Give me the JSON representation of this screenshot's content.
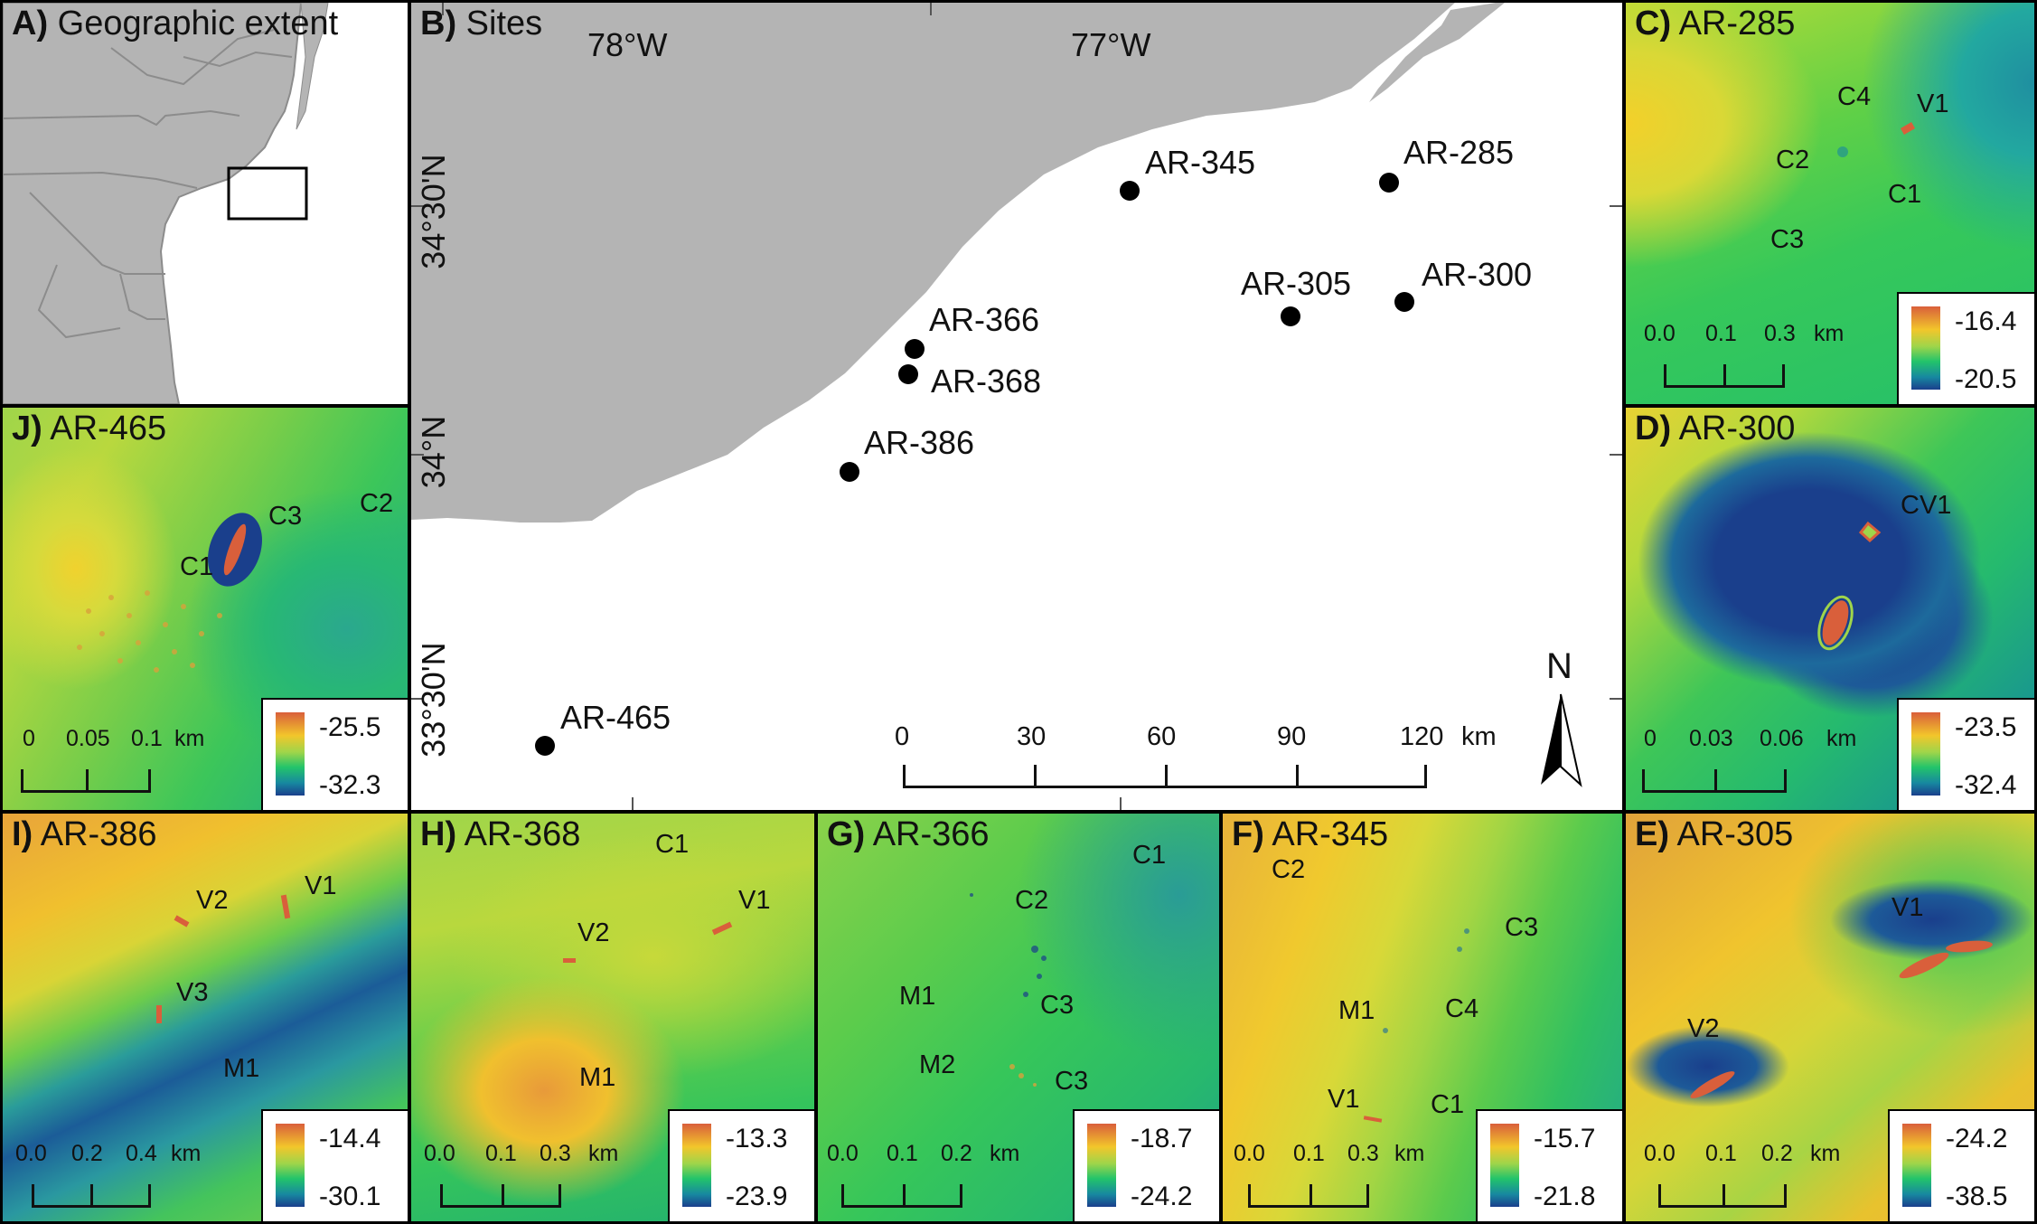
{
  "panels": {
    "a": {
      "letter": "A)",
      "title": "Geographic extent"
    },
    "b": {
      "letter": "B)",
      "title": "Sites",
      "lon_labels": [
        "78°W",
        "77°W"
      ],
      "lat_labels": [
        "34°30'N",
        "34°N",
        "33°30'N"
      ],
      "north": "N",
      "scale_ticks": [
        "0",
        "30",
        "60",
        "90",
        "120"
      ],
      "scale_unit": "km",
      "sites": [
        "AR-345",
        "AR-285",
        "AR-305",
        "AR-300",
        "AR-366",
        "AR-368",
        "AR-386",
        "AR-465"
      ]
    },
    "c": {
      "letter": "C)",
      "title": "AR-285",
      "labels": [
        "C4",
        "V1",
        "C2",
        "C1",
        "C3"
      ],
      "scale": [
        "0.0",
        "0.1",
        "0.3"
      ],
      "unit": "km",
      "legend_max": "-16.4",
      "legend_min": "-20.5"
    },
    "d": {
      "letter": "D)",
      "title": "AR-300",
      "labels": [
        "CV1"
      ],
      "scale": [
        "0",
        "0.03",
        "0.06"
      ],
      "unit": "km",
      "legend_max": "-23.5",
      "legend_min": "-32.4"
    },
    "j": {
      "letter": "J)",
      "title": "AR-465",
      "labels": [
        "C3",
        "C2",
        "C1"
      ],
      "scale": [
        "0",
        "0.05",
        "0.1"
      ],
      "unit": "km",
      "legend_max": "-25.5",
      "legend_min": "-32.3"
    },
    "i": {
      "letter": "I)",
      "title": "AR-386",
      "labels": [
        "V2",
        "V1",
        "V3",
        "M1"
      ],
      "scale": [
        "0.0",
        "0.2",
        "0.4"
      ],
      "unit": "km",
      "legend_max": "-14.4",
      "legend_min": "-30.1"
    },
    "h": {
      "letter": "H)",
      "title": "AR-368",
      "labels": [
        "C1",
        "V1",
        "V2",
        "M1"
      ],
      "scale": [
        "0.0",
        "0.1",
        "0.3"
      ],
      "unit": "km",
      "legend_max": "-13.3",
      "legend_min": "-23.9"
    },
    "g": {
      "letter": "G)",
      "title": "AR-366",
      "labels": [
        "C1",
        "C2",
        "M1",
        "C3",
        "M2",
        "C3"
      ],
      "scale": [
        "0.0",
        "0.1",
        "0.2"
      ],
      "unit": "km",
      "legend_max": "-18.7",
      "legend_min": "-24.2"
    },
    "f": {
      "letter": "F)",
      "title": "AR-345",
      "labels": [
        "C2",
        "C3",
        "M1",
        "C4",
        "V1",
        "C1"
      ],
      "scale": [
        "0.0",
        "0.1",
        "0.3"
      ],
      "unit": "km",
      "legend_max": "-15.7",
      "legend_min": "-21.8"
    },
    "e": {
      "letter": "E)",
      "title": "AR-305",
      "labels": [
        "V1",
        "V2"
      ],
      "scale": [
        "0.0",
        "0.1",
        "0.2"
      ],
      "unit": "km",
      "legend_max": "-24.2",
      "legend_min": "-38.5"
    }
  },
  "colors": {
    "land": "#b4b4b4",
    "water": "#ffffff",
    "frame": "#000000",
    "ramp": [
      "#d95f3b",
      "#f2c62b",
      "#9fd54a",
      "#23c46a",
      "#1788a0",
      "#1a3f8c"
    ]
  }
}
